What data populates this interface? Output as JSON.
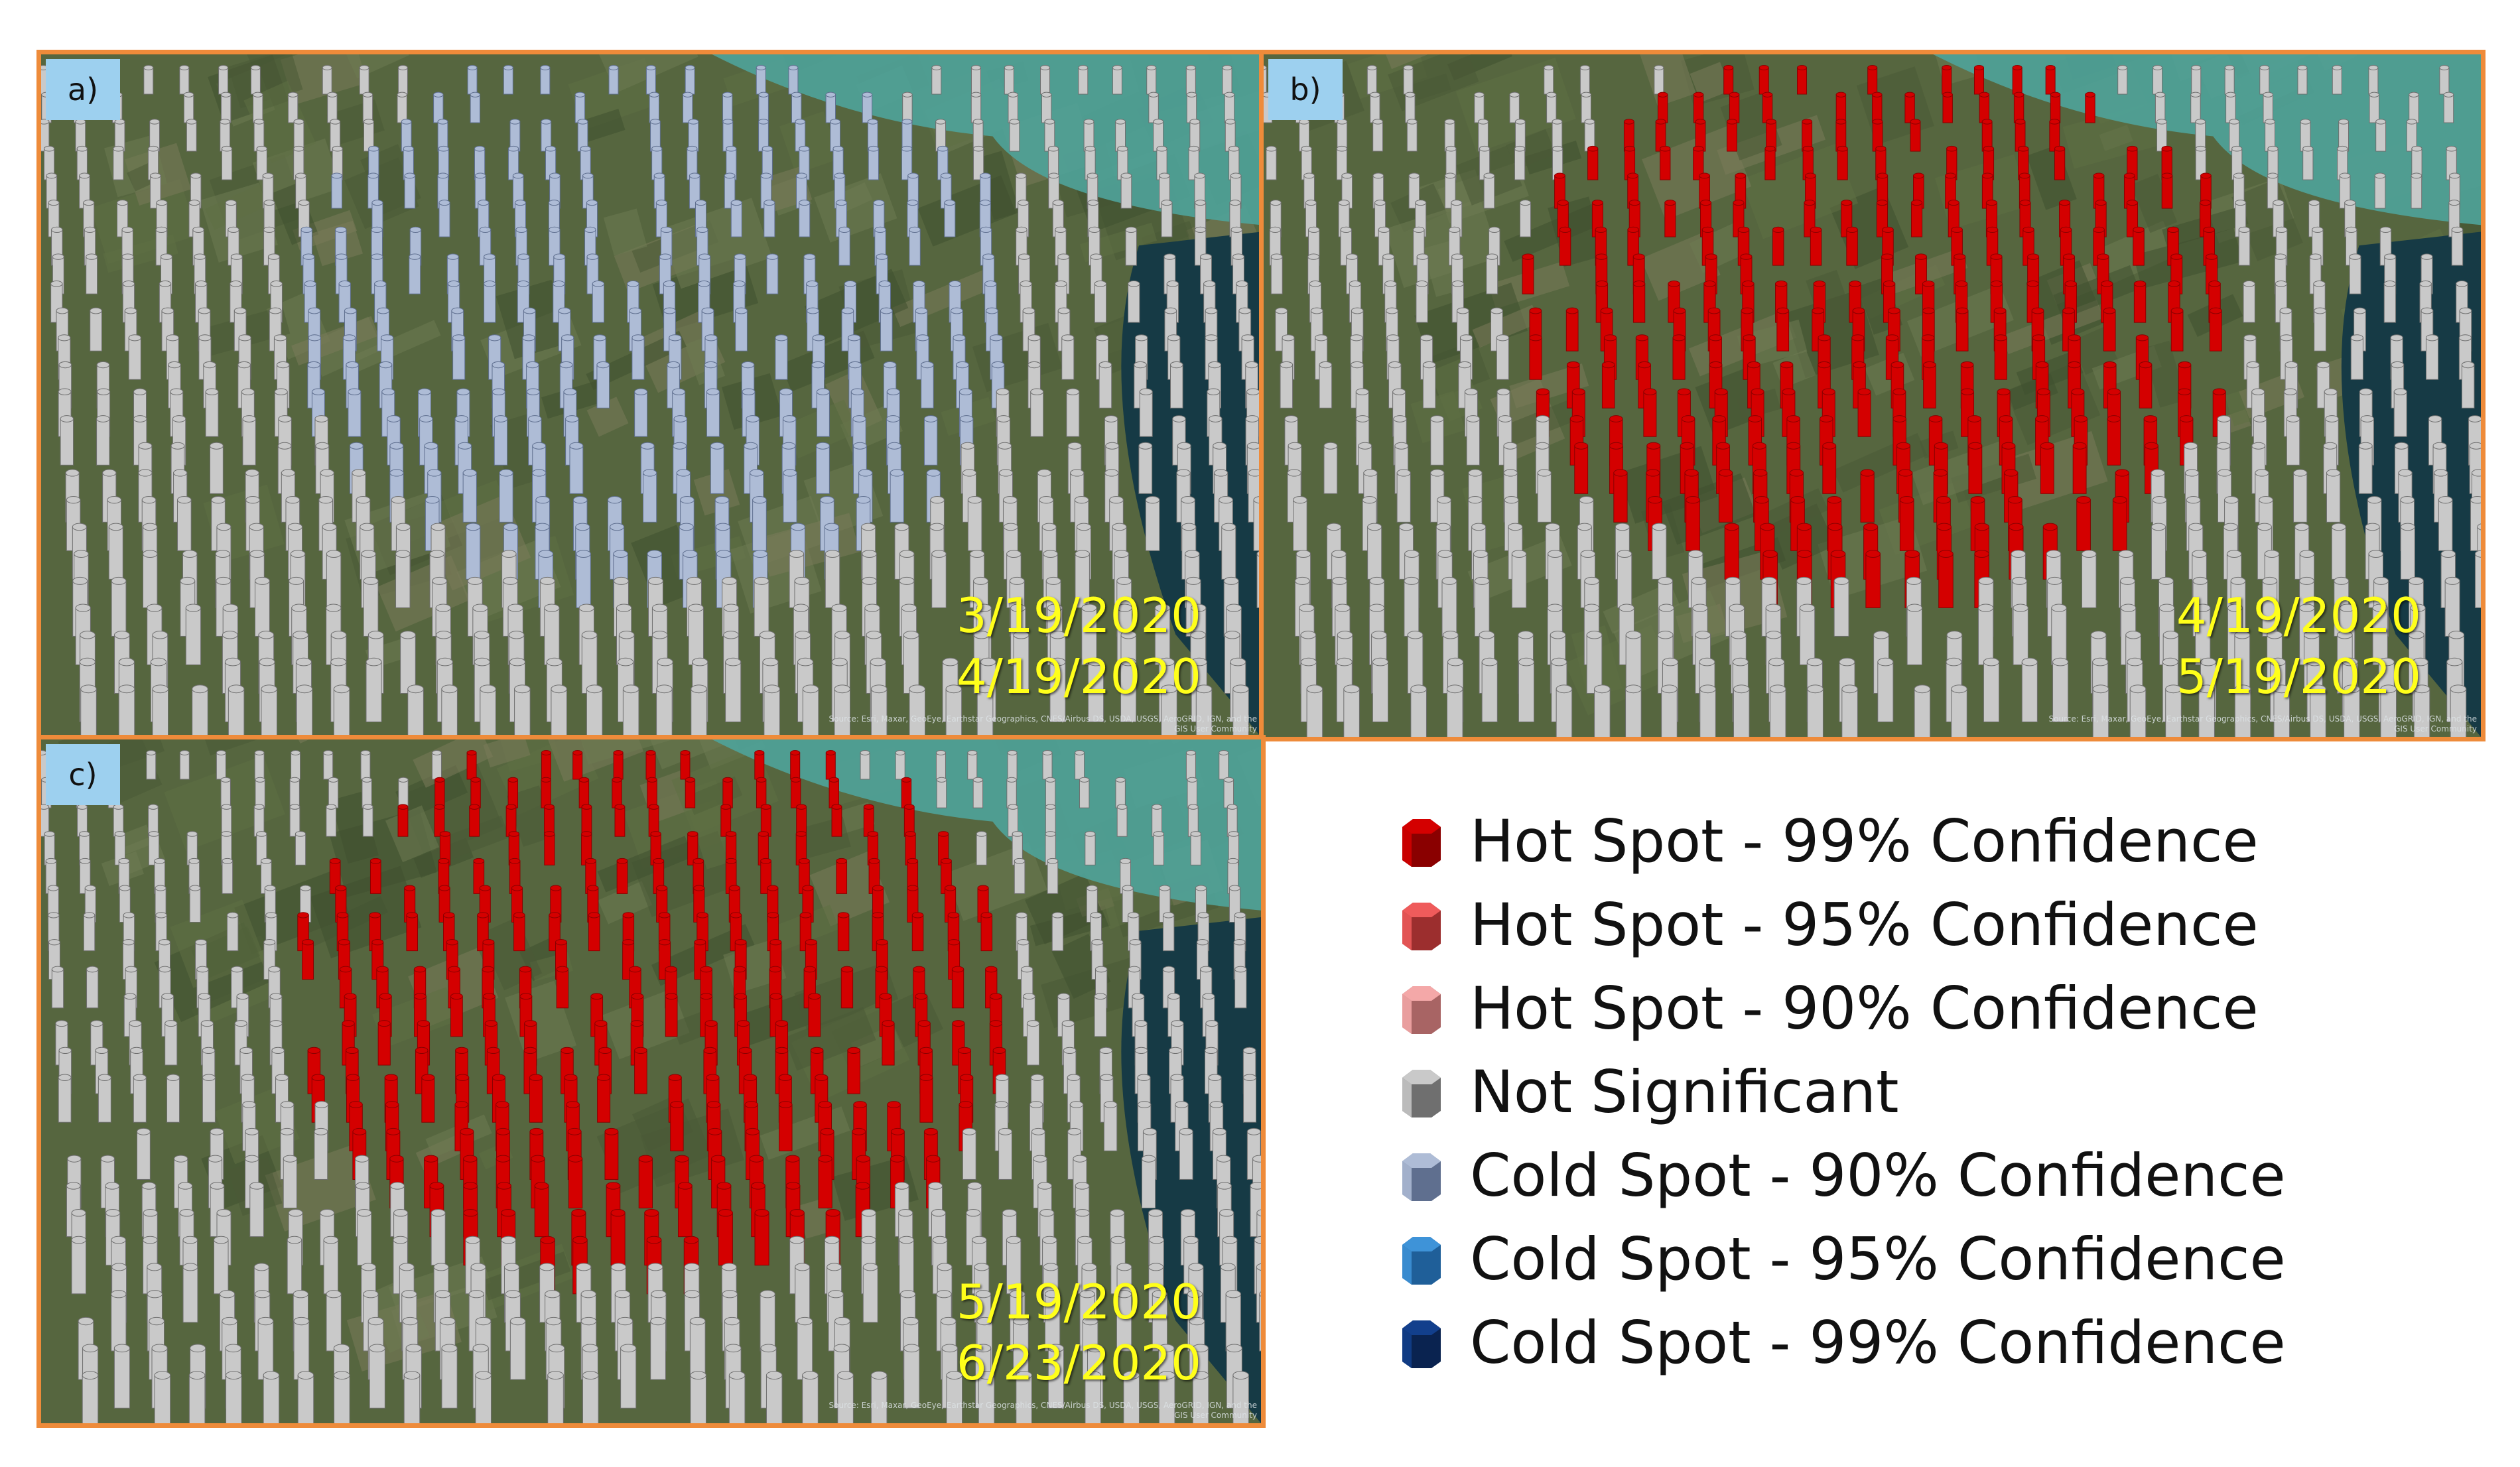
{
  "panels": [
    {
      "id": "a",
      "label": "a)",
      "dates": [
        "3/19/2020",
        "4/19/2020"
      ],
      "dominant_category": "Cold Spot - 90% Confidence",
      "attribution": [
        "Source: Esri, Maxar, GeoEye, Earthstar Geographics, CNES/Airbus DS, USDA, USGS, AeroGRID, IGN, and the",
        "GIS User Community"
      ]
    },
    {
      "id": "b",
      "label": "b)",
      "dates": [
        "4/19/2020",
        "5/19/2020"
      ],
      "dominant_category": "Hot Spot - 99% Confidence",
      "attribution": [
        "Source: Esri, Maxar, GeoEye, Earthstar Geographics, CNES/Airbus DS, USDA, USGS, AeroGRID, IGN, and the",
        "GIS User Community"
      ]
    },
    {
      "id": "c",
      "label": "c)",
      "dates": [
        "5/19/2020",
        "6/23/2020"
      ],
      "dominant_category": "Hot Spot - 99% Confidence",
      "attribution": [
        "Source: Esri, Maxar, GeoEye, Earthstar Geographics, CNES/Airbus DS, USDA, USGS, AeroGRID, IGN, and the",
        "GIS User Community"
      ]
    }
  ],
  "legend": {
    "items": [
      {
        "label": "Hot Spot - 99% Confidence",
        "color": "#d40000",
        "shade": "#8a0000"
      },
      {
        "label": "Hot Spot - 95% Confidence",
        "color": "#ef5b5b",
        "shade": "#9c2e2e"
      },
      {
        "label": "Hot Spot - 90% Confidence",
        "color": "#f4a8a8",
        "shade": "#a86464"
      },
      {
        "label": "Not Significant",
        "color": "#c9c9c9",
        "shade": "#6f6f6f"
      },
      {
        "label": "Cold Spot - 90% Confidence",
        "color": "#aebcd6",
        "shade": "#5f6f8f"
      },
      {
        "label": "Cold Spot - 95% Confidence",
        "color": "#3e93d8",
        "shade": "#1f5f99"
      },
      {
        "label": "Cold Spot - 99% Confidence",
        "color": "#123f8c",
        "shade": "#0a2350"
      }
    ]
  },
  "colors": {
    "panel_border": "#ee8b3a",
    "label_background": "#9dd0ef",
    "date_text": "#ffff1a"
  }
}
